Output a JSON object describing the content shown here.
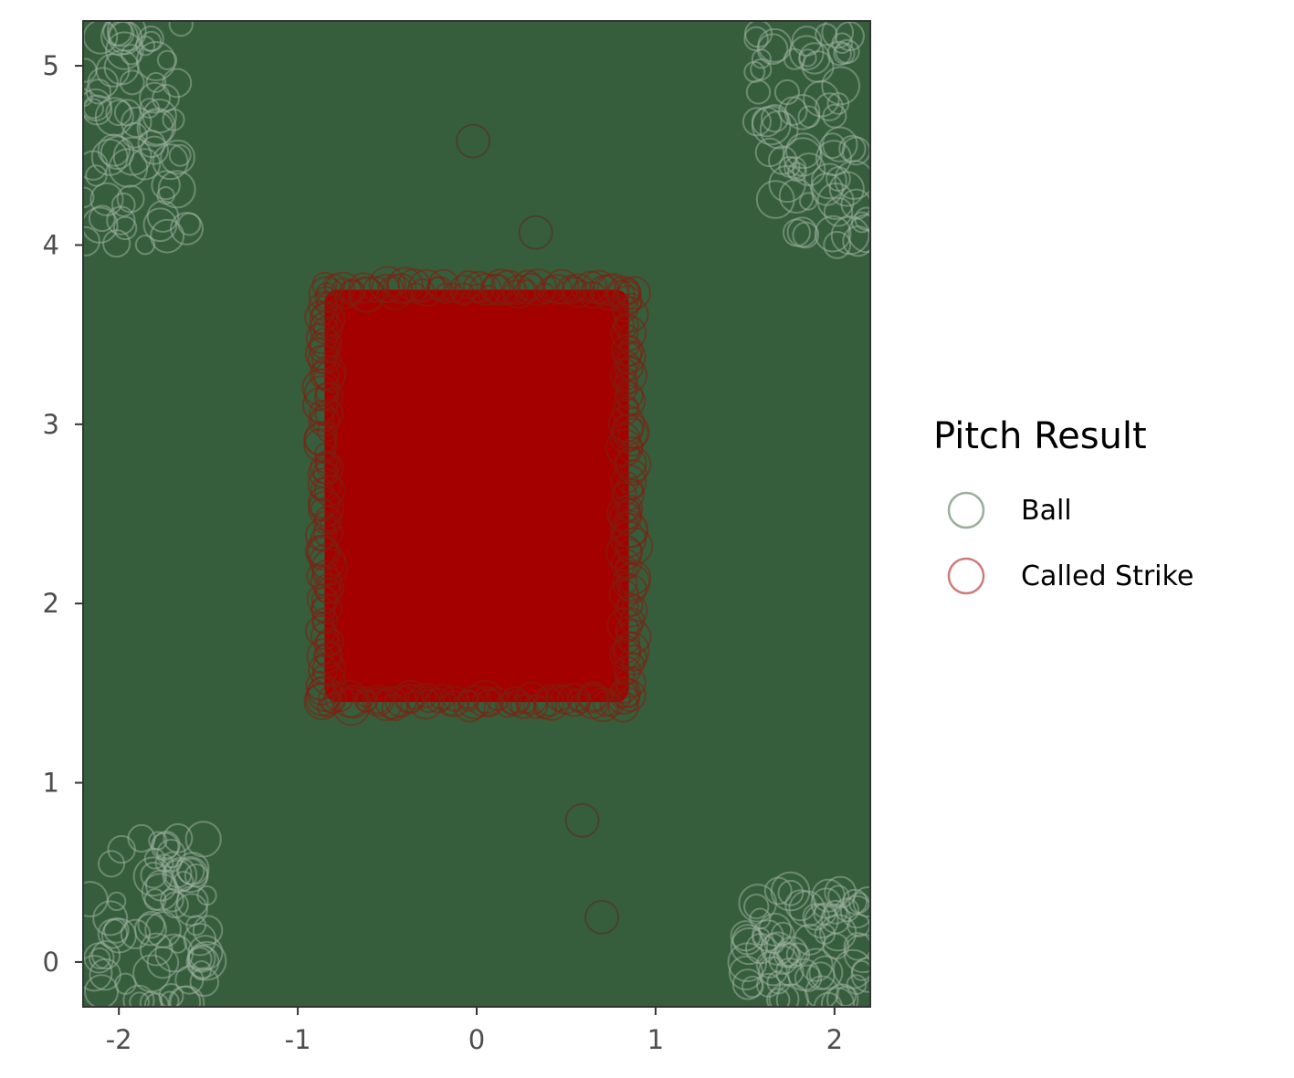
{
  "chart_data": {
    "type": "scatter",
    "title": "",
    "xlabel": "",
    "ylabel": "",
    "xlim": [
      -2.2,
      2.2
    ],
    "ylim": [
      -0.25,
      5.25
    ],
    "x_ticks": [
      "-2",
      "-1",
      "0",
      "1",
      "2"
    ],
    "y_ticks": [
      "0",
      "1",
      "2",
      "3",
      "4",
      "5"
    ],
    "grid": false,
    "legend_position": "right",
    "marker": "open circle",
    "series": [
      {
        "name": "Ball",
        "color": "#365e3d",
        "description_region": "entire plate area outside the strike zone",
        "x_range": [
          -2.2,
          2.2
        ],
        "y_range": [
          -0.25,
          5.25
        ]
      },
      {
        "name": "Called Strike",
        "color": "#a50000",
        "x_range": [
          -0.85,
          0.85
        ],
        "y_range": [
          1.45,
          3.75
        ]
      }
    ],
    "stray_points": [
      {
        "series": "Called Strike",
        "x": -0.02,
        "y": 4.58
      },
      {
        "series": "Called Strike",
        "x": 0.33,
        "y": 4.07
      },
      {
        "series": "Called Strike",
        "x": 0.59,
        "y": 0.79
      },
      {
        "series": "Called Strike",
        "x": 0.7,
        "y": 0.25
      }
    ]
  },
  "legend": {
    "title": "Pitch Result",
    "items": [
      {
        "label": "Ball",
        "color": "#9aae9d"
      },
      {
        "label": "Called Strike",
        "color": "#d07b7b"
      }
    ]
  }
}
